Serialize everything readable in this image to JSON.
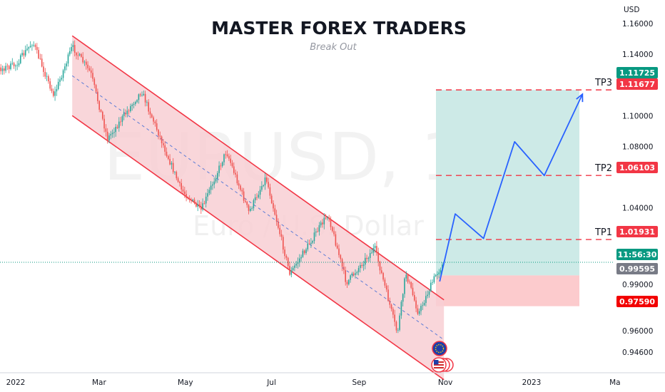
{
  "title": "MASTER FOREX TRADERS",
  "subtitle": "Break Out",
  "watermark": {
    "symbol": "EURUSD, 1D",
    "description": "Euro / U.S. Dollar"
  },
  "currency": "USD",
  "colors": {
    "channel": "#f23645",
    "channel_fill": "#f8cfd3",
    "tp_zone": "#cdeae7",
    "sl_zone": "#fccbcd",
    "projection": "#2962ff",
    "up_candle": "#26a69a",
    "down_candle": "#ef5350",
    "target_line": "#f23645"
  },
  "chart_data": {
    "type": "candlestick",
    "symbol": "EURUSD",
    "timeframe": "1D",
    "y_ticks": [
      "1.16000",
      "1.14000",
      "1.10000",
      "1.08000",
      "1.04000",
      "0.99000",
      "0.96000",
      "0.94600"
    ],
    "x_ticks": [
      "2022",
      "Mar",
      "May",
      "Jul",
      "Sep",
      "Nov",
      "2023",
      "Ma"
    ],
    "price_tags": [
      {
        "label": "1.11725",
        "color": "#089981",
        "price": 1.11725
      },
      {
        "label": "1.11677",
        "color": "#f23645",
        "price": 1.11677
      },
      {
        "label": "1.06103",
        "color": "#f23645",
        "price": 1.06103
      },
      {
        "label": "1.01931",
        "color": "#f23645",
        "price": 1.01931
      },
      {
        "label": "11:56:30",
        "color": "#089981",
        "price": 1.0045
      },
      {
        "label": "0.99595",
        "color": "#787b86",
        "price": 0.99595
      },
      {
        "label": "0.97590",
        "color": "#f20000",
        "price": 0.9759
      }
    ],
    "targets": [
      {
        "name": "TP3",
        "price": 1.11677
      },
      {
        "name": "TP2",
        "price": 1.06103
      },
      {
        "name": "TP1",
        "price": 1.01931
      }
    ],
    "entry_price": 0.99595,
    "stop_price": 0.9759,
    "channel": {
      "upper": [
        {
          "date": "2022-02-10",
          "price": 1.152
        },
        {
          "date": "2022-10-31",
          "price": 0.98
        }
      ],
      "lower": [
        {
          "date": "2022-02-10",
          "price": 1.1
        },
        {
          "date": "2022-10-31",
          "price": 0.928
        }
      ]
    },
    "projection_path": [
      {
        "date": "2022-10-28",
        "price": 0.992
      },
      {
        "date": "2022-11-08",
        "price": 1.036
      },
      {
        "date": "2022-11-28",
        "price": 1.02
      },
      {
        "date": "2022-12-20",
        "price": 1.083
      },
      {
        "date": "2023-01-10",
        "price": 1.061
      },
      {
        "date": "2023-02-06",
        "price": 1.114
      }
    ],
    "price_path": [
      {
        "date": "2021-12-01",
        "price": 1.128
      },
      {
        "date": "2021-12-15",
        "price": 1.129
      },
      {
        "date": "2022-01-01",
        "price": 1.133
      },
      {
        "date": "2022-01-13",
        "price": 1.148
      },
      {
        "date": "2022-01-28",
        "price": 1.113
      },
      {
        "date": "2022-02-10",
        "price": 1.145
      },
      {
        "date": "2022-02-23",
        "price": 1.128
      },
      {
        "date": "2022-03-07",
        "price": 1.085
      },
      {
        "date": "2022-03-31",
        "price": 1.116
      },
      {
        "date": "2022-04-28",
        "price": 1.052
      },
      {
        "date": "2022-05-12",
        "price": 1.038
      },
      {
        "date": "2022-05-30",
        "price": 1.077
      },
      {
        "date": "2022-06-15",
        "price": 1.037
      },
      {
        "date": "2022-06-27",
        "price": 1.06
      },
      {
        "date": "2022-07-14",
        "price": 0.997
      },
      {
        "date": "2022-08-10",
        "price": 1.036
      },
      {
        "date": "2022-08-23",
        "price": 0.991
      },
      {
        "date": "2022-09-12",
        "price": 1.014
      },
      {
        "date": "2022-09-28",
        "price": 0.958
      },
      {
        "date": "2022-10-04",
        "price": 0.998
      },
      {
        "date": "2022-10-13",
        "price": 0.971
      },
      {
        "date": "2022-10-25",
        "price": 0.996
      },
      {
        "date": "2022-10-31",
        "price": 1.004
      }
    ]
  }
}
